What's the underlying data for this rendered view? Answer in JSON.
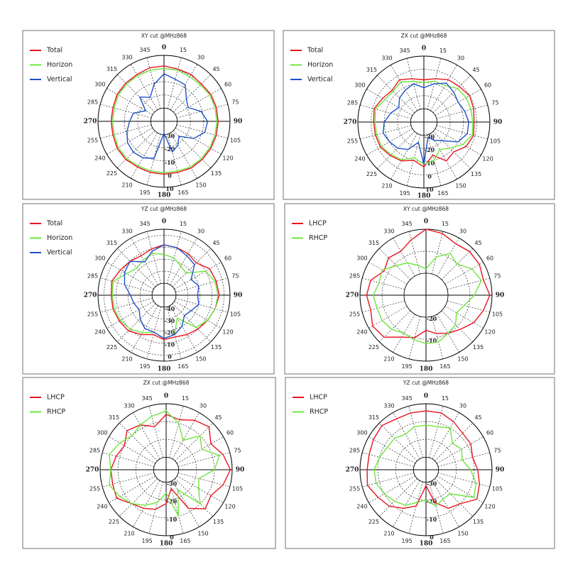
{
  "chart_data": [
    {
      "type": "polar",
      "title": "XY cut @MHz868",
      "angles": [
        0,
        15,
        30,
        45,
        60,
        75,
        90,
        105,
        120,
        135,
        150,
        165,
        180,
        195,
        210,
        225,
        240,
        255,
        270,
        285,
        300,
        315,
        330,
        345
      ],
      "rlim": [
        -40,
        10
      ],
      "rticks": [
        -30,
        -20,
        -10,
        0,
        10
      ],
      "series": [
        {
          "name": "Total",
          "color": "#e8141e",
          "values": [
            2,
            1,
            1,
            0,
            1,
            1,
            1,
            1,
            1,
            1,
            1,
            0,
            0,
            0,
            0,
            1,
            1,
            0,
            0,
            0,
            1,
            1,
            1,
            2
          ]
        },
        {
          "name": "Horizon",
          "color": "#6ee63c",
          "values": [
            0,
            0,
            -1,
            -1,
            0,
            0,
            0,
            0,
            0,
            0,
            0,
            -1,
            -1,
            -1,
            -1,
            0,
            0,
            -1,
            -1,
            -1,
            0,
            0,
            0,
            0
          ]
        },
        {
          "name": "Vertical",
          "color": "#1e50c8",
          "values": [
            -4,
            -7,
            -8,
            -16,
            -19,
            -11,
            -7,
            -8,
            -14,
            -24,
            -19,
            -16,
            -31,
            -11,
            -8,
            -7,
            -8,
            -11,
            -14,
            -16,
            -24,
            -14,
            -19,
            -11
          ]
        }
      ]
    },
    {
      "type": "polar",
      "title": "ZX cut @MHz868",
      "angles": [
        0,
        15,
        30,
        45,
        60,
        75,
        90,
        105,
        120,
        135,
        150,
        165,
        180,
        195,
        210,
        225,
        240,
        255,
        270,
        285,
        300,
        315,
        330,
        345
      ],
      "rlim": [
        -40,
        10
      ],
      "rticks": [
        -30,
        -20,
        -10,
        0,
        10
      ],
      "series": [
        {
          "name": "Total",
          "color": "#e8141e",
          "values": [
            -8,
            -6,
            -3,
            -2,
            0,
            -1,
            -2,
            -1,
            -3,
            -8,
            -6,
            -14,
            -6,
            -10,
            -6,
            -4,
            -2,
            -2,
            -2,
            -1,
            -4,
            -6,
            -3,
            -6
          ]
        },
        {
          "name": "Horizon",
          "color": "#6ee63c",
          "values": [
            -10,
            -8,
            -8,
            -4,
            -3,
            -3,
            -3,
            -2,
            -6,
            -12,
            -16,
            -10,
            -8,
            -12,
            -7,
            -5,
            -3,
            -3,
            -3,
            -2,
            -6,
            -7,
            -5,
            -8
          ]
        },
        {
          "name": "Vertical",
          "color": "#1e50c8",
          "values": [
            -14,
            -10,
            -6,
            -8,
            -10,
            -8,
            -6,
            -6,
            -10,
            -20,
            -24,
            -28,
            -8,
            -24,
            -16,
            -12,
            -10,
            -8,
            -10,
            -14,
            -18,
            -14,
            -12,
            -10
          ]
        }
      ]
    },
    {
      "type": "polar",
      "title": "YZ cut @MHz868",
      "angles": [
        0,
        15,
        30,
        45,
        60,
        75,
        90,
        105,
        120,
        135,
        150,
        165,
        180,
        195,
        210,
        225,
        240,
        255,
        270,
        285,
        300,
        315,
        330,
        345
      ],
      "rlim": [
        -50,
        5
      ],
      "rticks": [
        -40,
        -30,
        -20,
        -10,
        0
      ],
      "series": [
        {
          "name": "Total",
          "color": "#e8141e",
          "values": [
            -8,
            -9,
            -10,
            -12,
            -6,
            -5,
            -4,
            -6,
            -8,
            -10,
            -12,
            -14,
            -13,
            -16,
            -12,
            -8,
            -7,
            -6,
            -6,
            -5,
            -8,
            -10,
            -12,
            -10
          ]
        },
        {
          "name": "Horizon",
          "color": "#6ee63c",
          "values": [
            -16,
            -18,
            -22,
            -24,
            -10,
            -6,
            -5,
            -6,
            -8,
            -12,
            -28,
            -16,
            -14,
            -18,
            -14,
            -10,
            -8,
            -7,
            -7,
            -6,
            -14,
            -18,
            -16,
            -14
          ]
        },
        {
          "name": "Vertical",
          "color": "#1e50c8",
          "values": [
            -8,
            -9,
            -12,
            -14,
            -24,
            -20,
            -22,
            -20,
            -24,
            -26,
            -20,
            -16,
            -14,
            -18,
            -18,
            -22,
            -26,
            -24,
            -22,
            -16,
            -12,
            -10,
            -18,
            -12
          ]
        }
      ]
    },
    {
      "type": "polar",
      "title": "XY cut @MHz868",
      "angles": [
        0,
        15,
        30,
        45,
        60,
        75,
        90,
        105,
        120,
        135,
        150,
        165,
        180,
        195,
        210,
        225,
        240,
        255,
        270,
        285,
        300,
        315,
        330,
        345
      ],
      "rlim": [
        -30,
        0
      ],
      "rticks": [
        -20,
        -10
      ],
      "series": [
        {
          "name": "LHCP",
          "color": "#e8141e",
          "values": [
            0,
            -1,
            -3,
            -2,
            -2,
            -3,
            -1,
            -3,
            -5,
            -8,
            -10,
            -12,
            -14,
            -10,
            -8,
            -3,
            -2,
            -4,
            -3,
            -4,
            -8,
            -6,
            -7,
            -4
          ]
        },
        {
          "name": "RHCP",
          "color": "#6ee63c",
          "values": [
            -18,
            -12,
            -8,
            -10,
            -6,
            -4,
            -8,
            -12,
            -14,
            -11,
            -10,
            -8,
            -8,
            -9,
            -10,
            -8,
            -7,
            -7,
            -6,
            -8,
            -7,
            -11,
            -13,
            -16
          ]
        }
      ]
    },
    {
      "type": "polar",
      "title": "ZX cut @MHz868",
      "angles": [
        0,
        15,
        30,
        45,
        60,
        75,
        90,
        105,
        120,
        135,
        150,
        165,
        180,
        195,
        210,
        225,
        240,
        255,
        270,
        285,
        300,
        315,
        330,
        345
      ],
      "rlim": [
        -37,
        0
      ],
      "rticks": [
        -30,
        -20,
        -10,
        0
      ],
      "series": [
        {
          "name": "LHCP",
          "color": "#e8141e",
          "values": [
            -6,
            -8,
            -5,
            -3,
            -8,
            -4,
            -1,
            -4,
            -8,
            -6,
            -12,
            -26,
            -18,
            -14,
            -12,
            -10,
            -5,
            -6,
            -6,
            -8,
            -10,
            -6,
            -8,
            -12
          ]
        },
        {
          "name": "RHCP",
          "color": "#6ee63c",
          "values": [
            -4,
            -10,
            -18,
            -10,
            -14,
            -6,
            -10,
            -18,
            -16,
            -10,
            -24,
            -10,
            -24,
            -18,
            -14,
            -10,
            -7,
            -4,
            -6,
            -4,
            -7,
            -10,
            -8,
            -6
          ]
        }
      ]
    },
    {
      "type": "polar",
      "title": "YZ cut @MHz868",
      "angles": [
        0,
        15,
        30,
        45,
        60,
        75,
        90,
        105,
        120,
        135,
        150,
        165,
        180,
        195,
        210,
        225,
        240,
        255,
        270,
        285,
        300,
        315,
        330,
        345
      ],
      "rlim": [
        -37,
        0
      ],
      "rticks": [
        -30,
        -20,
        -10,
        0
      ],
      "series": [
        {
          "name": "LHCP",
          "color": "#e8141e",
          "values": [
            -4,
            -4,
            -6,
            -8,
            -8,
            -10,
            -8,
            -6,
            -4,
            -10,
            -12,
            -18,
            -28,
            -16,
            -12,
            -8,
            -6,
            -3,
            -4,
            -4,
            -3,
            -2,
            -4,
            -4
          ]
        },
        {
          "name": "RHCP",
          "color": "#6ee63c",
          "values": [
            -12,
            -12,
            -10,
            -16,
            -14,
            -16,
            -12,
            -8,
            -6,
            -18,
            -18,
            -16,
            -20,
            -18,
            -14,
            -12,
            -10,
            -8,
            -8,
            -10,
            -12,
            -12,
            -14,
            -12
          ]
        }
      ]
    }
  ]
}
